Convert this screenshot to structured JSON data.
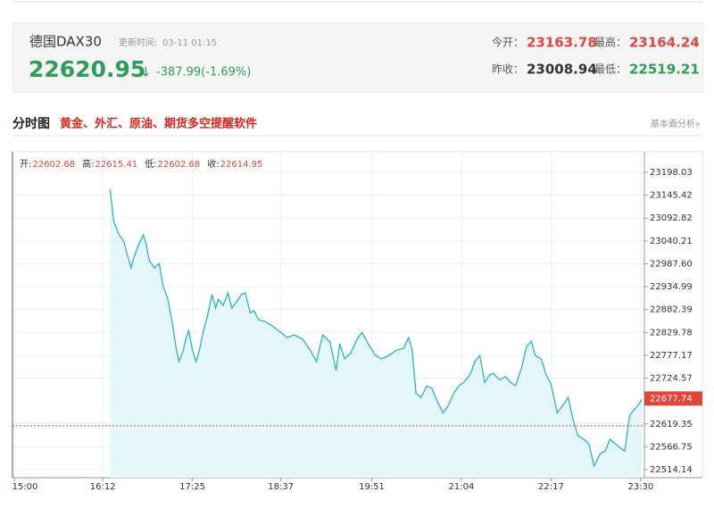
{
  "header": {
    "name": "德国DAX30",
    "update_label": "更新时间:",
    "update_time": "03-11 01:15",
    "price": "22620.95",
    "arrow": "↓",
    "change": "-387.99(-1.69%)",
    "stats": [
      {
        "label": "今开：",
        "value": "23163.78"
      },
      {
        "label": "最高：",
        "value": "23164.24"
      },
      {
        "label": "昨收：",
        "value": "23008.94"
      },
      {
        "label": "最低：",
        "value": "22519.21"
      }
    ]
  },
  "section": {
    "title": "分时图",
    "promo": "黄金、外汇、原油、期货多空提醒软件",
    "link": "基本面分析»"
  },
  "chart_data": {
    "type": "line",
    "color": "#2ab3c6",
    "area_color": "#e4f6f9",
    "grid": true,
    "ohlc": [
      {
        "label": "开:",
        "value": "22602.68"
      },
      {
        "label": "高:",
        "value": "22615.41"
      },
      {
        "label": "低:",
        "value": "22602.68"
      },
      {
        "label": "收:",
        "value": "22614.95"
      }
    ],
    "x": [
      978,
      981,
      985,
      989,
      992,
      995,
      997,
      1001,
      1005,
      1007,
      1010,
      1014,
      1018,
      1021,
      1025,
      1029,
      1032,
      1034,
      1037,
      1040,
      1042,
      1045,
      1048,
      1051,
      1054,
      1057,
      1061,
      1064,
      1066,
      1070,
      1074,
      1077,
      1081,
      1085,
      1088,
      1092,
      1095,
      1099,
      1104,
      1110,
      1117,
      1122,
      1128,
      1135,
      1141,
      1146,
      1151,
      1157,
      1162,
      1165,
      1169,
      1174,
      1179,
      1183,
      1188,
      1194,
      1199,
      1205,
      1211,
      1217,
      1221,
      1224,
      1227,
      1231,
      1236,
      1240,
      1244,
      1249,
      1253,
      1258,
      1262,
      1266,
      1271,
      1275,
      1279,
      1283,
      1287,
      1290,
      1295,
      1300,
      1304,
      1308,
      1313,
      1317,
      1321,
      1324,
      1329,
      1333,
      1337,
      1342,
      1346,
      1351,
      1355,
      1359,
      1364,
      1368,
      1372,
      1377,
      1381,
      1385,
      1390,
      1394,
      1397,
      1401,
      1404,
      1409,
      1411
    ],
    "values": [
      23159,
      23085,
      23056,
      23040,
      23009,
      22978,
      22999,
      23030,
      23054,
      23036,
      22995,
      22978,
      22988,
      22937,
      22906,
      22845,
      22789,
      22763,
      22783,
      22818,
      22834,
      22789,
      22763,
      22793,
      22834,
      22865,
      22917,
      22886,
      22906,
      22892,
      22921,
      22886,
      22900,
      22917,
      22921,
      22875,
      22880,
      22859,
      22855,
      22845,
      22830,
      22818,
      22824,
      22814,
      22789,
      22763,
      22824,
      22808,
      22742,
      22804,
      22769,
      22783,
      22814,
      22830,
      22804,
      22777,
      22769,
      22777,
      22789,
      22793,
      22818,
      22789,
      22691,
      22680,
      22707,
      22701,
      22674,
      22645,
      22660,
      22691,
      22707,
      22715,
      22732,
      22763,
      22777,
      22715,
      22732,
      22736,
      22721,
      22728,
      22715,
      22707,
      22748,
      22797,
      22810,
      22777,
      22769,
      22732,
      22711,
      22645,
      22660,
      22680,
      22629,
      22592,
      22584,
      22572,
      22522,
      22551,
      22557,
      22584,
      22572,
      22563,
      22557,
      22639,
      22650,
      22666,
      22676
    ],
    "last_value": 22677.74,
    "ref_line": 22615,
    "ref_color": "#e0463c",
    "xlim": [
      898.5,
      1413
    ],
    "xticks": [
      {
        "value": 900,
        "label": "15:00"
      },
      {
        "value": 972,
        "label": "16:12"
      },
      {
        "value": 1045,
        "label": "17:25"
      },
      {
        "value": 1117,
        "label": "18:37"
      },
      {
        "value": 1191,
        "label": "19:51"
      },
      {
        "value": 1264,
        "label": "21:04"
      },
      {
        "value": 1337,
        "label": "22:17"
      },
      {
        "value": 1410,
        "label": "23:30"
      }
    ],
    "ylim": [
      22495.6,
      23245.3
    ],
    "yticks": [
      23198.03,
      23145.42,
      23092.82,
      23040.21,
      {
        "value": 22987.6,
        "label": "22987.60"
      },
      22934.99,
      22882.39,
      22829.78,
      22777.17,
      22724.57,
      22619.35,
      22566.75,
      22514.14
    ]
  }
}
